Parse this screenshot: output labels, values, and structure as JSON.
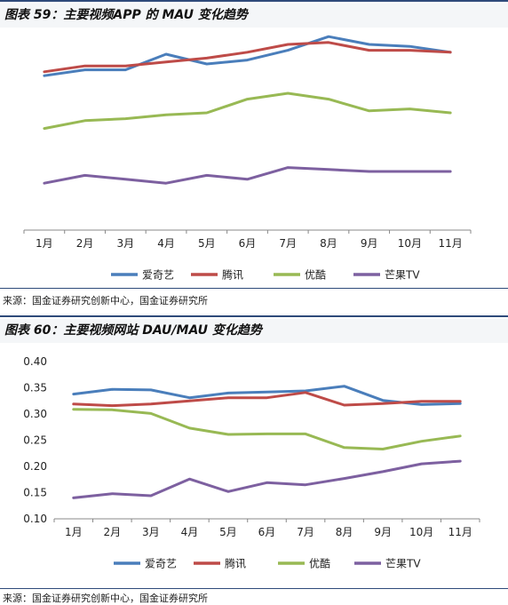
{
  "fig1": {
    "title": "图表 59：主要视频APP 的 MAU 变化趋势",
    "source": "来源：国金证券研究创新中心，国金证券研究所"
  },
  "fig2": {
    "title": "图表 60：主要视频网站 DAU/MAU 变化趋势",
    "source": "来源：国金证券研究创新中心，国金证券研究所"
  },
  "colors": {
    "series": [
      "#4a7ebb",
      "#be4b48",
      "#98b954",
      "#7d60a0"
    ]
  },
  "chart_data": [
    {
      "type": "line",
      "title": "图表 59：主要视频APP 的 MAU 变化趋势",
      "categories": [
        "1月",
        "2月",
        "3月",
        "4月",
        "5月",
        "6月",
        "7月",
        "8月",
        "9月",
        "10月",
        "11月"
      ],
      "ylim": [
        0,
        100
      ],
      "y_axis_labels": false,
      "grid": false,
      "legend": "bottom",
      "series": [
        {
          "name": "爱奇艺",
          "values": [
            79,
            82,
            82,
            90,
            85,
            87,
            92,
            99,
            95,
            94,
            91
          ]
        },
        {
          "name": "腾讯",
          "values": [
            81,
            84,
            84,
            86,
            88,
            91,
            95,
            96,
            92,
            92,
            91
          ]
        },
        {
          "name": "优酷",
          "values": [
            52,
            56,
            57,
            59,
            60,
            67,
            70,
            67,
            61,
            62,
            60
          ]
        },
        {
          "name": "芒果TV",
          "values": [
            24,
            28,
            26,
            24,
            28,
            26,
            32,
            31,
            30,
            30,
            30
          ]
        }
      ]
    },
    {
      "type": "line",
      "title": "图表 60：主要视频网站 DAU/MAU 变化趋势",
      "categories": [
        "1月",
        "2月",
        "3月",
        "4月",
        "5月",
        "6月",
        "7月",
        "8月",
        "9月",
        "10月",
        "11月"
      ],
      "ylim": [
        0.1,
        0.4
      ],
      "yticks": [
        "0.10",
        "0.15",
        "0.20",
        "0.25",
        "0.30",
        "0.35",
        "0.40"
      ],
      "grid": false,
      "legend": "bottom",
      "series": [
        {
          "name": "爱奇艺",
          "values": [
            0.338,
            0.347,
            0.346,
            0.331,
            0.34,
            0.342,
            0.344,
            0.353,
            0.326,
            0.318,
            0.32
          ]
        },
        {
          "name": "腾讯",
          "values": [
            0.319,
            0.316,
            0.319,
            0.325,
            0.331,
            0.331,
            0.341,
            0.317,
            0.32,
            0.324,
            0.324
          ]
        },
        {
          "name": "优酷",
          "values": [
            0.309,
            0.308,
            0.301,
            0.273,
            0.261,
            0.262,
            0.262,
            0.236,
            0.233,
            0.248,
            0.258
          ]
        },
        {
          "name": "芒果TV",
          "values": [
            0.14,
            0.148,
            0.144,
            0.176,
            0.152,
            0.169,
            0.165,
            0.177,
            0.19,
            0.205,
            0.21
          ]
        }
      ]
    }
  ]
}
